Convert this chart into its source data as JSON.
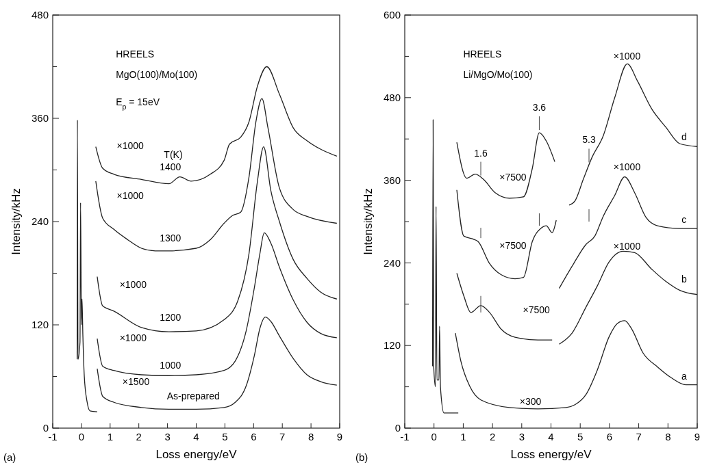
{
  "chart_data": [
    {
      "type": "line",
      "title": "(a)",
      "xlabel": "Loss energy/eV",
      "ylabel": "Intensity/kHz",
      "xlim": [
        -1,
        9
      ],
      "ylim": [
        0,
        480
      ],
      "xticks": [
        -1,
        0,
        1,
        2,
        3,
        4,
        5,
        6,
        7,
        8,
        9
      ],
      "yticks": [
        0,
        {
          "value": 60,
          "label": null
        },
        120,
        {
          "value": 180,
          "label": null
        },
        240,
        {
          "value": 300,
          "label": null
        },
        360,
        {
          "value": 420,
          "label": null
        },
        480
      ],
      "grid": false,
      "series": [
        {
          "color": "#222222",
          "x": [
            -0.15,
            -0.14,
            -0.12,
            -0.05,
            -0.03,
            0.0,
            0.02,
            0.05,
            0.1,
            0.2,
            0.3,
            0.55
          ],
          "values": [
            80,
            358,
            80,
            100,
            262,
            120,
            150,
            108,
            60,
            30,
            20,
            19
          ]
        },
        {
          "color": "#222222",
          "x": [
            0.55,
            0.74,
            1.13,
            2.09,
            3.05,
            4.0,
            4.97,
            5.36,
            5.74,
            6.03,
            6.22,
            6.41,
            6.6,
            6.9,
            7.38,
            7.86,
            8.34,
            8.9
          ],
          "values": [
            69,
            37,
            30,
            24,
            22,
            22,
            24,
            30,
            49,
            85,
            116,
            129,
            124,
            107,
            81,
            62,
            54,
            50
          ]
        },
        {
          "color": "#222222",
          "x": [
            0.55,
            0.74,
            1.13,
            2.09,
            3.05,
            4.0,
            4.97,
            5.36,
            5.74,
            6.03,
            6.22,
            6.37,
            6.6,
            6.9,
            7.38,
            7.86,
            8.34,
            8.9
          ],
          "values": [
            104,
            72,
            67,
            62,
            61,
            62,
            67,
            78,
            113,
            164,
            203,
            227,
            215,
            187,
            149,
            123,
            110,
            105
          ]
        },
        {
          "color": "#222222",
          "x": [
            0.55,
            0.74,
            1.13,
            2.09,
            3.05,
            4.0,
            4.97,
            5.45,
            5.84,
            6.13,
            6.35,
            6.6,
            6.9,
            7.38,
            7.86,
            8.34,
            8.9
          ],
          "values": [
            176,
            142,
            136,
            117,
            112,
            113,
            126,
            148,
            203,
            286,
            327,
            276,
            240,
            196,
            174,
            158,
            150
          ]
        },
        {
          "color": "#222222",
          "x": [
            0.5,
            0.74,
            1.13,
            1.61,
            2.09,
            2.57,
            3.05,
            4.0,
            4.49,
            4.97,
            5.26,
            5.55,
            5.84,
            6.08,
            6.29,
            6.5,
            6.9,
            7.38,
            7.86,
            8.9
          ],
          "values": [
            287,
            244,
            231,
            219,
            209,
            206,
            206,
            209,
            219,
            238,
            247,
            251,
            292,
            356,
            383,
            349,
            279,
            254,
            246,
            238
          ]
        },
        {
          "color": "#222222",
          "x": [
            0.5,
            0.74,
            1.13,
            2.09,
            3.05,
            3.43,
            3.82,
            4.49,
            4.97,
            5.16,
            5.55,
            5.84,
            6.13,
            6.46,
            6.9,
            7.38,
            7.86,
            8.34,
            8.9
          ],
          "values": [
            327,
            302,
            295,
            289,
            284,
            292,
            287,
            295,
            311,
            330,
            338,
            356,
            397,
            420,
            388,
            349,
            334,
            324,
            316
          ]
        }
      ],
      "annotations": [
        "HREELS",
        "MgO(100)/Mo(100)",
        "E$_{p}$ = 15eV",
        "×1000",
        "T(K)",
        "1400",
        "×1000",
        "1300",
        "×1000",
        "1200",
        "×1000",
        "1000",
        "×1500",
        "As-prepared"
      ]
    },
    {
      "type": "line",
      "title": "(b)",
      "xlabel": "Loss energy/eV",
      "ylabel": "Intensity/kHz",
      "xlim": [
        -1,
        9
      ],
      "ylim": [
        0,
        600
      ],
      "xticks": [
        -1,
        0,
        1,
        2,
        3,
        4,
        5,
        6,
        7,
        8,
        9
      ],
      "yticks": [
        0,
        {
          "value": 60,
          "label": null
        },
        120,
        {
          "value": 180,
          "label": null
        },
        240,
        {
          "value": 300,
          "label": null
        },
        360,
        {
          "value": 420,
          "label": null
        },
        480,
        {
          "value": 540,
          "label": null
        },
        600
      ],
      "grid": false,
      "series": [
        {
          "color": "#222222",
          "x": [
            -0.05,
            -0.03,
            -0.01,
            0.05,
            0.07,
            0.1,
            0.17,
            0.19,
            0.22,
            0.34,
            0.83
          ],
          "values": [
            90,
            448,
            90,
            60,
            322,
            70,
            70,
            148,
            60,
            22,
            22
          ]
        },
        {
          "color": "#222222",
          "x": [
            0.73,
            0.92,
            1.22,
            1.6,
            2.58,
            3.55,
            4.52,
            4.82,
            5.2,
            5.59,
            5.98,
            6.27,
            6.52,
            6.76,
            7.15,
            7.64,
            8.12,
            8.61,
            9
          ],
          "values": [
            138,
            97,
            61,
            41,
            30,
            28,
            30,
            34,
            49,
            85,
            132,
            152,
            156,
            144,
            109,
            89,
            73,
            63,
            63
          ]
        },
        {
          "color": "#222222",
          "x": [
            0.78,
            1.02,
            1.26,
            1.6,
            1.9,
            2.29,
            2.77,
            3.55,
            4.04
          ],
          "values": [
            225,
            192,
            168,
            178,
            168,
            144,
            132,
            128,
            128
          ]
        },
        {
          "color": "#222222",
          "x": [
            4.28,
            4.72,
            5.2,
            5.59,
            5.98,
            6.47,
            6.86,
            7.44,
            7.93,
            8.41,
            9
          ],
          "values": [
            122,
            138,
            176,
            207,
            241,
            257,
            255,
            231,
            213,
            200,
            194
          ]
        },
        {
          "color": "#222222",
          "x": [
            0.78,
            1.02,
            1.31,
            1.51,
            1.9,
            2.29,
            2.77,
            3.06,
            3.36,
            3.65,
            3.84,
            4.04,
            4.18
          ],
          "values": [
            346,
            279,
            275,
            271,
            239,
            223,
            217,
            219,
            271,
            290,
            294,
            284,
            302
          ]
        },
        {
          "color": "#222222",
          "x": [
            4.28,
            4.72,
            5.2,
            5.5,
            5.79,
            6.18,
            6.52,
            6.86,
            7.25,
            7.64,
            8.41,
            9
          ],
          "values": [
            203,
            235,
            267,
            279,
            308,
            338,
            365,
            342,
            306,
            294,
            290,
            290
          ]
        },
        {
          "color": "#222222",
          "x": [
            0.78,
            1.12,
            1.41,
            1.7,
            2.09,
            2.58,
            3.06,
            3.36,
            3.6,
            3.84,
            4.13
          ],
          "values": [
            415,
            363,
            369,
            361,
            342,
            334,
            336,
            377,
            429,
            417,
            387
          ]
        },
        {
          "color": "#222222",
          "x": [
            4.62,
            4.82,
            5.11,
            5.4,
            5.79,
            6.18,
            6.61,
            6.96,
            7.44,
            7.93,
            8.41,
            9
          ],
          "values": [
            324,
            330,
            362,
            393,
            425,
            480,
            529,
            504,
            464,
            437,
            413,
            409
          ]
        }
      ],
      "annotations": [
        "HREELS",
        "Li/MgO/Mo(100)",
        "×1000",
        {
          "text": "1.6",
          "x": 1.6,
          "y": 363
        },
        {
          "text": "3.6",
          "x": 3.6,
          "y": 429
        },
        {
          "text": "5.3",
          "x": 5.3,
          "y": 382
        },
        "×7500",
        "×1000",
        "d",
        "×7500",
        "×1000",
        "c",
        "×7500",
        "b",
        "a",
        "×300"
      ]
    }
  ]
}
